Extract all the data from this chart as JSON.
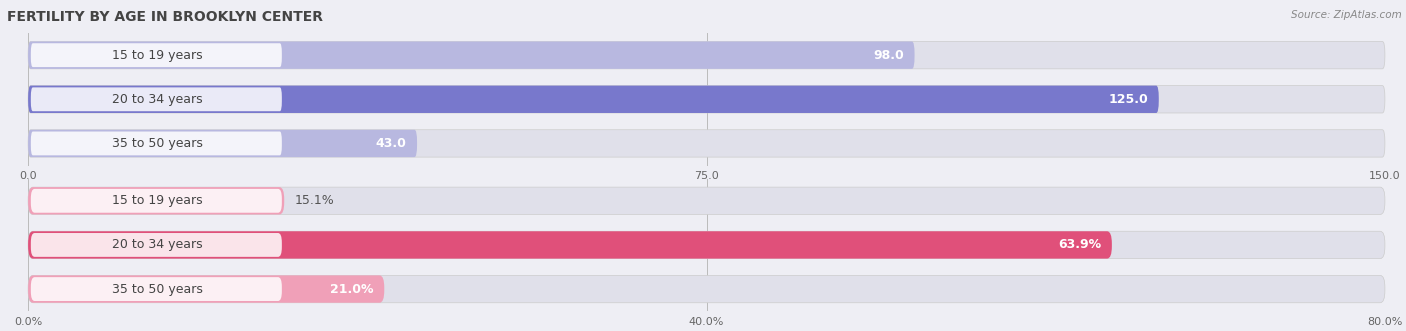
{
  "title": "FERTILITY BY AGE IN BROOKLYN CENTER",
  "source": "Source: ZipAtlas.com",
  "top_section": {
    "categories": [
      "15 to 19 years",
      "20 to 34 years",
      "35 to 50 years"
    ],
    "values": [
      98.0,
      125.0,
      43.0
    ],
    "xmax": 150.0,
    "xticks": [
      0.0,
      75.0,
      150.0
    ],
    "xtick_labels": [
      "0.0",
      "75.0",
      "150.0"
    ],
    "bar_color_strong": "#7878cc",
    "bar_color_light": "#b8b8e0",
    "bar_color_mid": "#9898d8"
  },
  "bottom_section": {
    "categories": [
      "15 to 19 years",
      "20 to 34 years",
      "35 to 50 years"
    ],
    "values": [
      15.1,
      63.9,
      21.0
    ],
    "xmax": 80.0,
    "xticks": [
      0.0,
      40.0,
      80.0
    ],
    "xtick_labels": [
      "0.0%",
      "40.0%",
      "80.0%"
    ],
    "bar_color_strong": "#e0507a",
    "bar_color_light": "#f0a0b8",
    "bar_color_mid": "#e878a0"
  },
  "bg_color": "#eeeef4",
  "bar_bg_color": "#e0e0ea",
  "title_fontsize": 10,
  "label_fontsize": 9,
  "tick_fontsize": 8,
  "source_fontsize": 7.5
}
